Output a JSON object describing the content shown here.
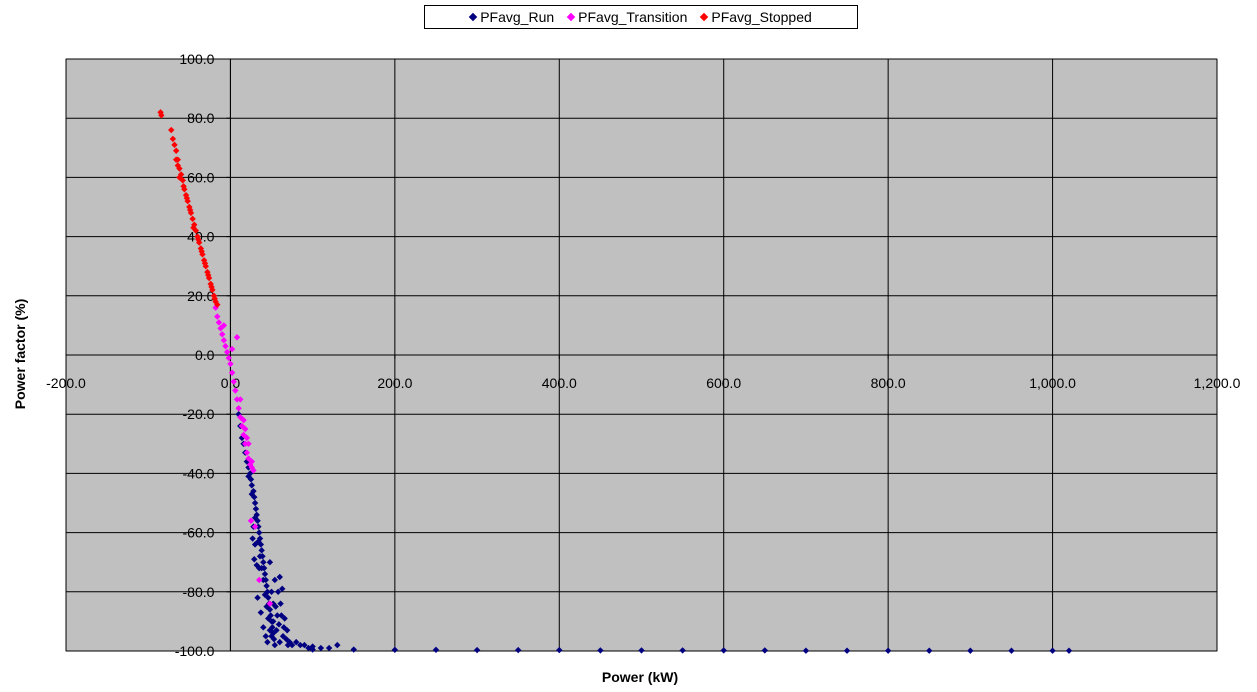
{
  "chart_data": {
    "type": "scatter",
    "title": "",
    "xlabel": "Power (kW)",
    "ylabel": "Power factor (%)",
    "xlim": [
      -200,
      1200
    ],
    "ylim": [
      -100,
      100
    ],
    "x_ticks": [
      -200,
      0,
      200,
      400,
      600,
      800,
      1000,
      1200
    ],
    "x_tick_labels": [
      "-200.0",
      "0.0",
      "200.0",
      "400.0",
      "600.0",
      "800.0",
      "1,000.0",
      "1,200.0"
    ],
    "y_ticks": [
      100,
      80,
      60,
      40,
      20,
      0,
      -20,
      -40,
      -60,
      -80,
      -100
    ],
    "y_tick_labels": [
      "100.0",
      "80.0",
      "60.0",
      "40.0",
      "20.0",
      "0.0",
      "-20.0",
      "-40.0",
      "-60.0",
      "-80.0",
      "-100.0"
    ],
    "grid": true,
    "plot_background": "#c0c0c0",
    "legend_position": "top-center",
    "series": [
      {
        "name": "PFavg_Run",
        "color": "#000080",
        "points": [
          [
            10,
            -20
          ],
          [
            12,
            -24
          ],
          [
            14,
            -28
          ],
          [
            16,
            -30
          ],
          [
            18,
            -33
          ],
          [
            20,
            -36
          ],
          [
            22,
            -38
          ],
          [
            24,
            -40
          ],
          [
            25,
            -42
          ],
          [
            26,
            -44
          ],
          [
            28,
            -46
          ],
          [
            29,
            -48
          ],
          [
            30,
            -50
          ],
          [
            31,
            -52
          ],
          [
            32,
            -54
          ],
          [
            33,
            -56
          ],
          [
            34,
            -58
          ],
          [
            35,
            -60
          ],
          [
            36,
            -62
          ],
          [
            37,
            -64
          ],
          [
            38,
            -66
          ],
          [
            39,
            -68
          ],
          [
            40,
            -70
          ],
          [
            41,
            -72
          ],
          [
            42,
            -74
          ],
          [
            43,
            -76
          ],
          [
            44,
            -78
          ],
          [
            45,
            -80
          ],
          [
            46,
            -82
          ],
          [
            47,
            -84
          ],
          [
            48,
            -86
          ],
          [
            49,
            -88
          ],
          [
            50,
            -90
          ],
          [
            51,
            -92
          ],
          [
            52,
            -94
          ],
          [
            53,
            -96
          ],
          [
            54,
            -98
          ],
          [
            22,
            -41
          ],
          [
            26,
            -47
          ],
          [
            30,
            -55
          ],
          [
            34,
            -63
          ],
          [
            36,
            -68
          ],
          [
            38,
            -72
          ],
          [
            40,
            -76
          ],
          [
            42,
            -81
          ],
          [
            44,
            -85
          ],
          [
            46,
            -89
          ],
          [
            48,
            -93
          ],
          [
            35,
            -72
          ],
          [
            33,
            -82
          ],
          [
            37,
            -87
          ],
          [
            40,
            -92
          ],
          [
            43,
            -95
          ],
          [
            45,
            -97
          ],
          [
            50,
            -95
          ],
          [
            52,
            -90
          ],
          [
            55,
            -85
          ],
          [
            58,
            -80
          ],
          [
            60,
            -75
          ],
          [
            62,
            -88
          ],
          [
            65,
            -92
          ],
          [
            68,
            -96
          ],
          [
            70,
            -98
          ],
          [
            56,
            -93
          ],
          [
            60,
            -97
          ],
          [
            64,
            -95
          ],
          [
            72,
            -97
          ],
          [
            75,
            -98
          ],
          [
            80,
            -97
          ],
          [
            85,
            -98
          ],
          [
            90,
            -98
          ],
          [
            95,
            -99
          ],
          [
            100,
            -98.5
          ],
          [
            110,
            -99
          ],
          [
            120,
            -99
          ],
          [
            130,
            -98
          ],
          [
            48,
            -70
          ],
          [
            50,
            -80
          ],
          [
            52,
            -84
          ],
          [
            54,
            -76
          ],
          [
            57,
            -88
          ],
          [
            59,
            -91
          ],
          [
            61,
            -84
          ],
          [
            63,
            -79
          ],
          [
            66,
            -89
          ],
          [
            69,
            -93
          ],
          [
            28,
            -58
          ],
          [
            30,
            -64
          ],
          [
            32,
            -71
          ],
          [
            27,
            -62
          ],
          [
            29,
            -69
          ],
          [
            100,
            -99.5
          ],
          [
            150,
            -99.5
          ],
          [
            200,
            -99.6
          ],
          [
            250,
            -99.6
          ],
          [
            300,
            -99.7
          ],
          [
            350,
            -99.7
          ],
          [
            400,
            -99.7
          ],
          [
            450,
            -99.8
          ],
          [
            500,
            -99.8
          ],
          [
            550,
            -99.8
          ],
          [
            600,
            -99.8
          ],
          [
            650,
            -99.8
          ],
          [
            700,
            -99.9
          ],
          [
            750,
            -99.9
          ],
          [
            800,
            -99.9
          ],
          [
            850,
            -99.9
          ],
          [
            900,
            -99.9
          ],
          [
            950,
            -99.9
          ],
          [
            1000,
            -99.9
          ],
          [
            1020,
            -99.9
          ]
        ]
      },
      {
        "name": "PFavg_Transition",
        "color": "#ff00ff",
        "points": [
          [
            -18,
            16
          ],
          [
            -16,
            13
          ],
          [
            -14,
            11
          ],
          [
            -12,
            9
          ],
          [
            -10,
            7
          ],
          [
            -8,
            5
          ],
          [
            -6,
            3
          ],
          [
            -4,
            1
          ],
          [
            -2,
            -1
          ],
          [
            0,
            -3
          ],
          [
            2,
            -6
          ],
          [
            4,
            -9
          ],
          [
            6,
            -12
          ],
          [
            8,
            -15
          ],
          [
            10,
            -18
          ],
          [
            12,
            -21
          ],
          [
            14,
            -24
          ],
          [
            16,
            -27
          ],
          [
            18,
            -30
          ],
          [
            20,
            -33
          ],
          [
            22,
            -35
          ],
          [
            24,
            -37
          ],
          [
            26,
            -38
          ],
          [
            8,
            6
          ],
          [
            2,
            2
          ],
          [
            -8,
            10
          ],
          [
            12,
            -15
          ],
          [
            18,
            -25
          ],
          [
            22,
            -30
          ],
          [
            26,
            -36
          ],
          [
            28,
            -39
          ],
          [
            25,
            -56
          ],
          [
            30,
            -58
          ],
          [
            35,
            -76
          ],
          [
            48,
            -84
          ],
          [
            16,
            -22
          ],
          [
            20,
            -28
          ]
        ]
      },
      {
        "name": "PFavg_Stopped",
        "color": "#ff0000",
        "points": [
          [
            -85,
            82
          ],
          [
            -84,
            81
          ],
          [
            -72,
            76
          ],
          [
            -70,
            73
          ],
          [
            -68,
            71
          ],
          [
            -66,
            69
          ],
          [
            -64,
            66
          ],
          [
            -62,
            63
          ],
          [
            -60,
            61
          ],
          [
            -58,
            59
          ],
          [
            -56,
            56
          ],
          [
            -54,
            54
          ],
          [
            -52,
            52
          ],
          [
            -50,
            50
          ],
          [
            -48,
            48
          ],
          [
            -46,
            46
          ],
          [
            -44,
            44
          ],
          [
            -42,
            42
          ],
          [
            -40,
            40
          ],
          [
            -38,
            38
          ],
          [
            -36,
            36
          ],
          [
            -34,
            34
          ],
          [
            -32,
            32
          ],
          [
            -30,
            30
          ],
          [
            -28,
            28
          ],
          [
            -26,
            26
          ],
          [
            -24,
            24
          ],
          [
            -22,
            22
          ],
          [
            -20,
            20
          ],
          [
            -18,
            18
          ],
          [
            -16,
            17
          ],
          [
            -45,
            43
          ],
          [
            -39,
            39
          ],
          [
            -35,
            35
          ],
          [
            -31,
            31
          ],
          [
            -27,
            27
          ],
          [
            -23,
            23
          ],
          [
            -19,
            19
          ],
          [
            -62,
            60
          ],
          [
            -57,
            57
          ],
          [
            -53,
            53
          ],
          [
            -49,
            49
          ],
          [
            -66,
            66
          ],
          [
            -64,
            64
          ]
        ]
      }
    ]
  }
}
